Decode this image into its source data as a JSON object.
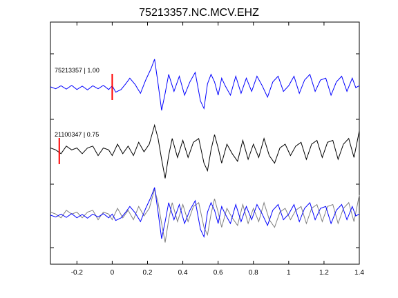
{
  "chart_data": {
    "type": "line",
    "title": "75213357.NC.MCV.EHZ",
    "xlabel": "",
    "ylabel": "",
    "xlim": [
      -0.35,
      1.4
    ],
    "x_ticks": [
      -0.2,
      0,
      0.2,
      0.4,
      0.6,
      0.8,
      1,
      1.2,
      1.4
    ],
    "x_tick_labels": [
      "-0.2",
      "0",
      "0.2",
      "0.4",
      "0.6",
      "0.8",
      "1",
      "1.2",
      "1.4"
    ],
    "grid": false,
    "panels": [
      {
        "label": "75213357 | 1.00",
        "pick_time": 0.0,
        "pick_color": "#ff0000",
        "series": [
          "master"
        ]
      },
      {
        "label": "21100347 | 0.75",
        "pick_time": -0.3,
        "pick_color": "#ff0000",
        "series": [
          "aligned"
        ]
      },
      {
        "label": "",
        "series": [
          "aligned",
          "master"
        ],
        "overlay": true
      }
    ],
    "series": [
      {
        "id": "master",
        "color": "#0000ff",
        "x": [
          -0.35,
          -0.32,
          -0.29,
          -0.26,
          -0.23,
          -0.2,
          -0.17,
          -0.14,
          -0.11,
          -0.08,
          -0.05,
          -0.02,
          0.0,
          0.02,
          0.05,
          0.08,
          0.1,
          0.13,
          0.16,
          0.19,
          0.22,
          0.24,
          0.26,
          0.28,
          0.3,
          0.32,
          0.35,
          0.38,
          0.41,
          0.44,
          0.47,
          0.5,
          0.52,
          0.54,
          0.56,
          0.58,
          0.6,
          0.62,
          0.64,
          0.67,
          0.7,
          0.73,
          0.76,
          0.79,
          0.82,
          0.85,
          0.88,
          0.91,
          0.94,
          0.97,
          1.0,
          1.03,
          1.06,
          1.09,
          1.12,
          1.15,
          1.18,
          1.21,
          1.24,
          1.27,
          1.3,
          1.33,
          1.36,
          1.38,
          1.4
        ],
        "y": [
          0.02,
          -0.03,
          0.05,
          -0.04,
          0.06,
          -0.05,
          0.04,
          -0.06,
          0.05,
          -0.03,
          0.06,
          -0.05,
          0.05,
          -0.12,
          -0.05,
          0.12,
          0.25,
          0.08,
          -0.15,
          0.2,
          0.5,
          0.75,
          0.1,
          -0.6,
          -0.15,
          0.35,
          -0.1,
          0.3,
          -0.2,
          0.15,
          0.4,
          -0.35,
          -0.55,
          0.1,
          0.35,
          0.15,
          -0.2,
          0.25,
          0.05,
          -0.2,
          0.3,
          -0.15,
          0.25,
          -0.1,
          0.3,
          0.05,
          -0.25,
          0.15,
          0.3,
          -0.1,
          0.05,
          0.3,
          -0.15,
          0.2,
          0.35,
          -0.1,
          0.2,
          0.25,
          -0.2,
          0.15,
          0.3,
          -0.1,
          0.25,
          0.0,
          0.05
        ]
      },
      {
        "id": "aligned",
        "color": "#000000",
        "x": [
          -0.35,
          -0.32,
          -0.29,
          -0.26,
          -0.23,
          -0.2,
          -0.17,
          -0.14,
          -0.11,
          -0.08,
          -0.05,
          -0.02,
          0.0,
          0.03,
          0.06,
          0.09,
          0.12,
          0.15,
          0.18,
          0.21,
          0.24,
          0.26,
          0.28,
          0.3,
          0.32,
          0.34,
          0.37,
          0.4,
          0.43,
          0.46,
          0.49,
          0.52,
          0.54,
          0.56,
          0.58,
          0.6,
          0.62,
          0.65,
          0.68,
          0.71,
          0.74,
          0.77,
          0.8,
          0.83,
          0.86,
          0.89,
          0.92,
          0.95,
          0.98,
          1.01,
          1.04,
          1.07,
          1.1,
          1.13,
          1.16,
          1.19,
          1.22,
          1.25,
          1.28,
          1.31,
          1.34,
          1.37,
          1.4
        ],
        "y": [
          0.1,
          0.05,
          -0.05,
          0.15,
          0.05,
          0.1,
          -0.05,
          0.1,
          0.15,
          -0.1,
          0.1,
          0.05,
          -0.1,
          0.2,
          -0.05,
          0.15,
          -0.1,
          0.25,
          0.0,
          0.2,
          0.7,
          0.35,
          -0.2,
          -0.7,
          -0.1,
          0.35,
          -0.15,
          0.3,
          -0.15,
          0.25,
          0.35,
          -0.3,
          -0.5,
          0.05,
          0.45,
          0.1,
          -0.3,
          0.2,
          -0.05,
          -0.25,
          0.3,
          -0.2,
          0.2,
          -0.15,
          0.35,
          -0.1,
          -0.3,
          0.1,
          0.2,
          -0.1,
          0.15,
          0.25,
          -0.2,
          0.2,
          0.3,
          -0.15,
          0.25,
          0.3,
          -0.2,
          0.2,
          0.35,
          -0.15,
          0.55
        ]
      }
    ]
  }
}
